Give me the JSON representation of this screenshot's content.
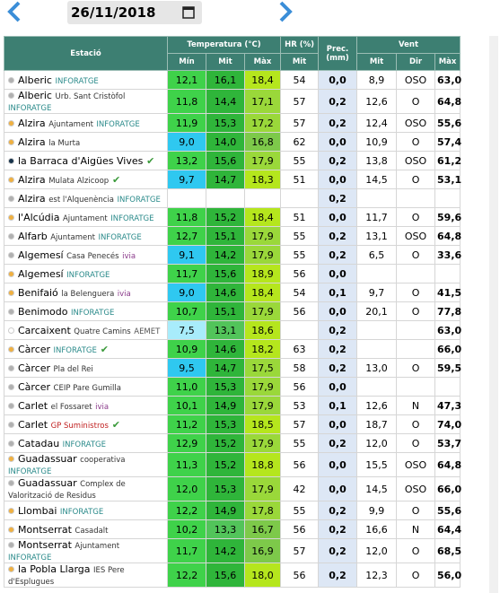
{
  "date": "26/11/2018",
  "table": {
    "header": {
      "station": "Estació",
      "temp": "Temperatura (°C)",
      "hr": "HR (%)",
      "prec": "Prec. (mm)",
      "wind": "Vent",
      "sub": [
        "Mín",
        "Mit",
        "Màx",
        "Mit",
        "Mit",
        "Dir",
        "Màx"
      ]
    },
    "rows": [
      {
        "dot": "#b0b0b0",
        "name": "Alberic",
        "place": null,
        "brand": "INFORATGE",
        "brand_color": "#2a8a8a",
        "check": false,
        "cells": [
          "12,1",
          "16,1",
          "18,4",
          "54",
          "0,0",
          "8,9",
          "OSO",
          "63,0"
        ]
      },
      {
        "dot": "#b0b0b0",
        "name": "Alberic",
        "place": "Urb. Sant Cristòfol",
        "brand": "INFORATGE",
        "brand_color": "#2a8a8a",
        "check": false,
        "cells": [
          "11,8",
          "14,4",
          "17,1",
          "57",
          "0,2",
          "12,6",
          "O",
          "64,8"
        ]
      },
      {
        "dot": "#f0b040",
        "name": "Alzira",
        "place": "Ajuntament",
        "brand": "INFORATGE",
        "brand_color": "#2a8a8a",
        "check": false,
        "cells": [
          "11,9",
          "15,3",
          "17,2",
          "57",
          "0,2",
          "12,4",
          "OSO",
          "55,6"
        ]
      },
      {
        "dot": "#f0b040",
        "name": "Alzira",
        "place": "la Murta",
        "brand": null,
        "brand_color": null,
        "check": false,
        "cells": [
          "9,0",
          "14,0",
          "16,8",
          "62",
          "0,0",
          "10,9",
          "O",
          "57,4"
        ]
      },
      {
        "dot": "#16324a",
        "name": "la Barraca d'Aigües Vives",
        "place": null,
        "brand": null,
        "brand_color": null,
        "check": true,
        "cells": [
          "13,2",
          "15,6",
          "17,9",
          "55",
          "0,2",
          "13,8",
          "OSO",
          "61,2"
        ]
      },
      {
        "dot": "#f0b040",
        "name": "Alzira",
        "place": "Mulata Alzicoop",
        "brand": null,
        "brand_color": null,
        "check": true,
        "cells": [
          "9,7",
          "14,7",
          "18,3",
          "51",
          "0,0",
          "14,5",
          "O",
          "53,1"
        ]
      },
      {
        "dot": "#b0b0b0",
        "name": "Alzira",
        "place": "est l'Alquenència",
        "brand": "INFORATGE",
        "brand_color": "#2a8a8a",
        "check": false,
        "cells": [
          null,
          null,
          null,
          null,
          "0,2",
          null,
          null,
          null
        ]
      },
      {
        "dot": "#f0b040",
        "name": "l'Alcúdia",
        "place": "Ajuntament",
        "brand": "INFORATGE",
        "brand_color": "#2a8a8a",
        "check": false,
        "cells": [
          "11,8",
          "15,2",
          "18,4",
          "51",
          "0,0",
          "11,7",
          "O",
          "59,6"
        ]
      },
      {
        "dot": "#b0b0b0",
        "name": "Alfarb",
        "place": "Ajuntament",
        "brand": "INFORATGE",
        "brand_color": "#2a8a8a",
        "check": false,
        "cells": [
          "12,7",
          "15,1",
          "17,9",
          "55",
          "0,2",
          "13,1",
          "OSO",
          "64,8"
        ]
      },
      {
        "dot": "#b0b0b0",
        "name": "Algemesí",
        "place": "Casa Penecés",
        "brand": "ivia",
        "brand_color": "#8a3a8a",
        "check": false,
        "cells": [
          "9,1",
          "14,2",
          "17,9",
          "55",
          "0,2",
          "6,5",
          "O",
          "33,6"
        ]
      },
      {
        "dot": "#f0b040",
        "name": "Algemesí",
        "place": null,
        "brand": "INFORATGE",
        "brand_color": "#2a8a8a",
        "check": false,
        "cells": [
          "11,7",
          "15,6",
          "18,9",
          "56",
          "0,0",
          null,
          null,
          null
        ]
      },
      {
        "dot": "#f0b040",
        "name": "Benifaió",
        "place": "la Belenguera",
        "brand": "ivia",
        "brand_color": "#8a3a8a",
        "check": false,
        "cells": [
          "9,0",
          "14,6",
          "18,4",
          "54",
          "0,1",
          "9,7",
          "O",
          "41,5"
        ]
      },
      {
        "dot": "#b0b0b0",
        "name": "Benimodo",
        "place": null,
        "brand": "INFORATGE",
        "brand_color": "#2a8a8a",
        "check": false,
        "cells": [
          "10,7",
          "15,1",
          "17,9",
          "56",
          "0,0",
          "20,1",
          "O",
          "77,8"
        ]
      },
      {
        "dot": "#ffffff",
        "name": "Carcaixent",
        "place": "Quatre Camins",
        "brand": "AEMET",
        "brand_color": "#555555",
        "check": false,
        "cells": [
          "7,5",
          "13,1",
          "18,6",
          null,
          "0,2",
          null,
          null,
          "63,0"
        ]
      },
      {
        "dot": "#f0b040",
        "name": "Càrcer",
        "place": null,
        "brand": "INFORATGE",
        "brand_color": "#2a8a8a",
        "check": true,
        "cells": [
          "10,9",
          "14,6",
          "18,2",
          "63",
          "0,2",
          null,
          null,
          "66,0"
        ]
      },
      {
        "dot": "#b0b0b0",
        "name": "Càrcer",
        "place": "Pla del Rei",
        "brand": null,
        "brand_color": null,
        "check": false,
        "cells": [
          "9,5",
          "14,7",
          "17,5",
          "58",
          "0,2",
          "13,0",
          "O",
          "59,5"
        ]
      },
      {
        "dot": "#b0b0b0",
        "name": "Càrcer",
        "place": "CEIP Pare Gumilla",
        "brand": null,
        "brand_color": null,
        "check": false,
        "cells": [
          "11,0",
          "15,3",
          "17,9",
          "56",
          "0,0",
          null,
          null,
          null
        ]
      },
      {
        "dot": "#b0b0b0",
        "name": "Carlet",
        "place": "el Fossaret",
        "brand": "ivia",
        "brand_color": "#8a3a8a",
        "check": false,
        "cells": [
          "10,1",
          "14,9",
          "17,9",
          "53",
          "0,1",
          "12,6",
          "N",
          "47,3"
        ]
      },
      {
        "dot": "#b0b0b0",
        "name": "Carlet",
        "place": null,
        "brand": "GP Suministros",
        "brand_color": "#c02020",
        "check": true,
        "cells": [
          "11,2",
          "15,3",
          "18,5",
          "57",
          "0,0",
          "18,7",
          "O",
          "74,0"
        ]
      },
      {
        "dot": "#b0b0b0",
        "name": "Catadau",
        "place": null,
        "brand": "INFORATGE",
        "brand_color": "#2a8a8a",
        "check": false,
        "cells": [
          "12,9",
          "15,2",
          "17,9",
          "55",
          "0,2",
          "12,0",
          "O",
          "53,7"
        ]
      },
      {
        "dot": "#f0b040",
        "name": "Guadassuar",
        "place": "cooperativa",
        "brand": "INFORATGE",
        "brand_color": "#2a8a8a",
        "check": false,
        "cells": [
          "11,3",
          "15,2",
          "18,8",
          "56",
          "0,0",
          "15,5",
          "OSO",
          "64,8"
        ]
      },
      {
        "dot": "#b0b0b0",
        "name": "Guadassuar",
        "place": "Complex de Valorització de Residus",
        "brand": null,
        "brand_color": null,
        "check": false,
        "cells": [
          "12,0",
          "15,3",
          "17,9",
          "42",
          "0,0",
          "14,5",
          "OSO",
          "66,0"
        ]
      },
      {
        "dot": "#f0b040",
        "name": "Llombai",
        "place": null,
        "brand": "INFORATGE",
        "brand_color": "#2a8a8a",
        "check": false,
        "cells": [
          "12,2",
          "14,9",
          "17,8",
          "55",
          "0,2",
          "9,9",
          "O",
          "55,6"
        ]
      },
      {
        "dot": "#f0b040",
        "name": "Montserrat",
        "place": "Casadalt",
        "brand": null,
        "brand_color": null,
        "check": false,
        "cells": [
          "10,2",
          "13,3",
          "16,7",
          "56",
          "0,2",
          "16,6",
          "N",
          "64,4"
        ]
      },
      {
        "dot": "#b0b0b0",
        "name": "Montserrat",
        "place": "Ajuntament",
        "brand": "INFORATGE",
        "brand_color": "#2a8a8a",
        "check": false,
        "cells": [
          "11,7",
          "14,2",
          "16,9",
          "57",
          "0,2",
          "12,0",
          "O",
          "68,5"
        ]
      },
      {
        "dot": "#f0b040",
        "name": "la Pobla Llarga",
        "place": "IES Pere d'Esplugues",
        "brand": null,
        "brand_color": null,
        "check": false,
        "cells": [
          "12,2",
          "15,6",
          "18,0",
          "56",
          "0,2",
          "12,3",
          "O",
          "56,0"
        ]
      }
    ]
  }
}
